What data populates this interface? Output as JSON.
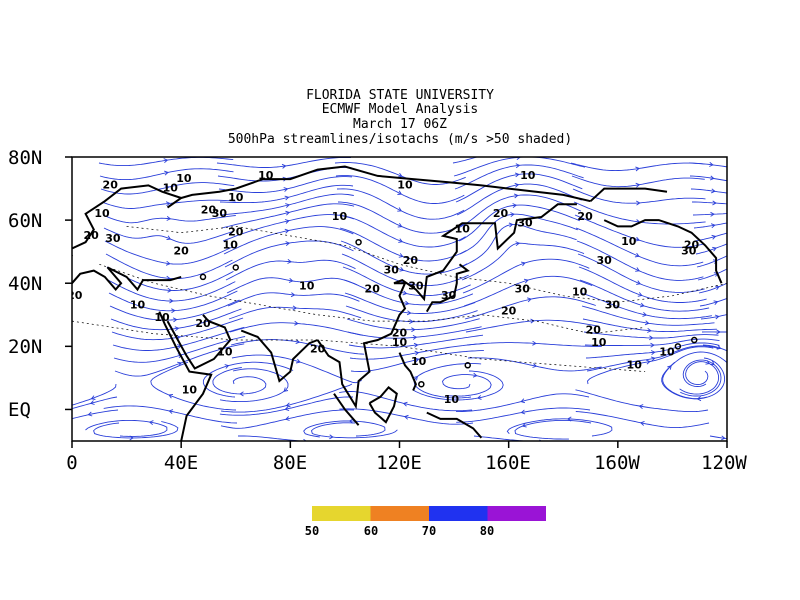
{
  "title_lines": [
    "FLORIDA STATE UNIVERSITY",
    "ECMWF Model Analysis",
    "March 17 06Z",
    "500hPa streamlines/isotachs (m/s >50 shaded)"
  ],
  "axes": {
    "x_ticks": [
      "0",
      "40E",
      "80E",
      "120E",
      "160E",
      "160W",
      "120W"
    ],
    "y_ticks": [
      "80N",
      "60N",
      "40N",
      "20N",
      "EQ"
    ],
    "lon_range": [
      0,
      240
    ],
    "lat_range": [
      -10,
      80
    ]
  },
  "colorbar": {
    "labels": [
      "50",
      "60",
      "70",
      "80"
    ],
    "colors": [
      "#e6d62e",
      "#ef8122",
      "#2032f0",
      "#9a14d6"
    ]
  },
  "colors": {
    "streamline": "#2a3fd9",
    "coast": "#000000",
    "isotach": "#000000"
  },
  "isotach_labels": [
    {
      "text": "20",
      "lon": 14,
      "lat": 71
    },
    {
      "text": "10",
      "lon": 36,
      "lat": 70
    },
    {
      "text": "10",
      "lon": 41,
      "lat": 73
    },
    {
      "text": "10",
      "lon": 71,
      "lat": 74
    },
    {
      "text": "10",
      "lon": 60,
      "lat": 67
    },
    {
      "text": "10",
      "lon": 11,
      "lat": 62
    },
    {
      "text": "20",
      "lon": 50,
      "lat": 63
    },
    {
      "text": "30",
      "lon": 54,
      "lat": 62
    },
    {
      "text": "20",
      "lon": 60,
      "lat": 56
    },
    {
      "text": "20",
      "lon": 7,
      "lat": 55
    },
    {
      "text": "30",
      "lon": 15,
      "lat": 54
    },
    {
      "text": "10",
      "lon": 58,
      "lat": 52
    },
    {
      "text": "20",
      "lon": 40,
      "lat": 50
    },
    {
      "text": "10",
      "lon": 98,
      "lat": 61
    },
    {
      "text": "10",
      "lon": 122,
      "lat": 71
    },
    {
      "text": "10",
      "lon": 143,
      "lat": 57
    },
    {
      "text": "20",
      "lon": 157,
      "lat": 62
    },
    {
      "text": "10",
      "lon": 167,
      "lat": 74
    },
    {
      "text": "30",
      "lon": 166,
      "lat": 59
    },
    {
      "text": "20",
      "lon": 188,
      "lat": 61
    },
    {
      "text": "10",
      "lon": 204,
      "lat": 53
    },
    {
      "text": "30",
      "lon": 195,
      "lat": 47
    },
    {
      "text": "30",
      "lon": 226,
      "lat": 50
    },
    {
      "text": "20",
      "lon": 227,
      "lat": 52
    },
    {
      "text": "30",
      "lon": 117,
      "lat": 44
    },
    {
      "text": "20",
      "lon": 124,
      "lat": 47
    },
    {
      "text": "30",
      "lon": 126,
      "lat": 39
    },
    {
      "text": "10",
      "lon": 86,
      "lat": 39
    },
    {
      "text": "20",
      "lon": 110,
      "lat": 38
    },
    {
      "text": "30",
      "lon": 138,
      "lat": 36
    },
    {
      "text": "30",
      "lon": 165,
      "lat": 38
    },
    {
      "text": "20",
      "lon": 160,
      "lat": 31
    },
    {
      "text": "10",
      "lon": 186,
      "lat": 37
    },
    {
      "text": "30",
      "lon": 198,
      "lat": 33
    },
    {
      "text": "20",
      "lon": 191,
      "lat": 25
    },
    {
      "text": "10",
      "lon": 193,
      "lat": 21
    },
    {
      "text": "10",
      "lon": 24,
      "lat": 33
    },
    {
      "text": "10",
      "lon": 33,
      "lat": 29
    },
    {
      "text": "20",
      "lon": 48,
      "lat": 27
    },
    {
      "text": "10",
      "lon": 56,
      "lat": 18
    },
    {
      "text": "20",
      "lon": 90,
      "lat": 19
    },
    {
      "text": "20",
      "lon": 120,
      "lat": 24
    },
    {
      "text": "10",
      "lon": 120,
      "lat": 21
    },
    {
      "text": "10",
      "lon": 127,
      "lat": 15
    },
    {
      "text": "10",
      "lon": 43,
      "lat": 6
    },
    {
      "text": "10",
      "lon": 139,
      "lat": 3
    },
    {
      "text": "10",
      "lon": 206,
      "lat": 14
    },
    {
      "text": "10",
      "lon": 218,
      "lat": 18
    },
    {
      "text": "20",
      "lon": 1,
      "lat": 36
    }
  ]
}
